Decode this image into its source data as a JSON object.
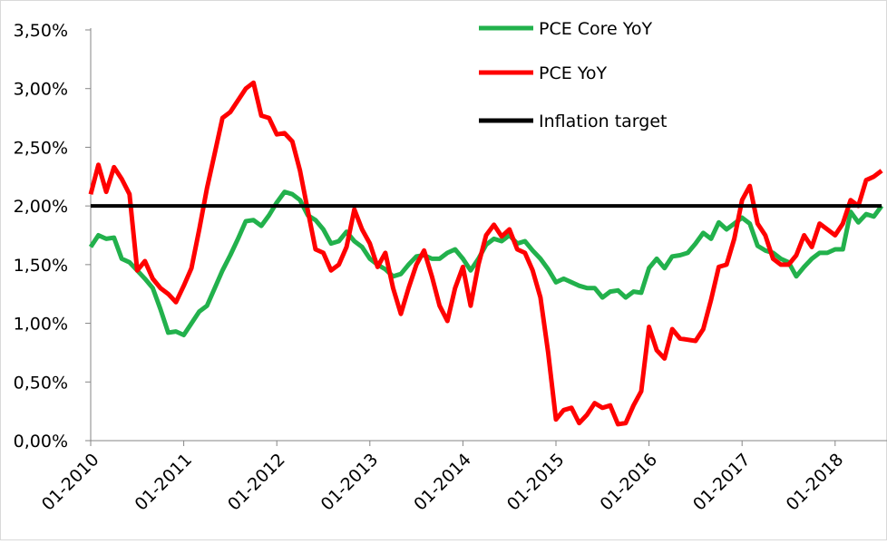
{
  "chart_data": {
    "type": "line",
    "x_unit": "month",
    "x_tick_labels": [
      "01-2010",
      "01-2011",
      "01-2012",
      "01-2013",
      "01-2014",
      "01-2015",
      "01-2016",
      "01-2017",
      "01-2018"
    ],
    "x_range": [
      "2010-01",
      "2018-07"
    ],
    "y_tick_labels": [
      "0,00%",
      "0,50%",
      "1,00%",
      "1,50%",
      "2,00%",
      "2,50%",
      "3,00%",
      "3,50%"
    ],
    "ylim": [
      0,
      3.5
    ],
    "grid": false,
    "legend_position": "top-right",
    "series": [
      {
        "name": "PCE Core YoY",
        "color": "#22b14c",
        "points": [
          [
            "2010-01",
            1.65
          ],
          [
            "2010-02",
            1.75
          ],
          [
            "2010-03",
            1.72
          ],
          [
            "2010-04",
            1.73
          ],
          [
            "2010-05",
            1.55
          ],
          [
            "2010-06",
            1.52
          ],
          [
            "2010-07",
            1.45
          ],
          [
            "2010-08",
            1.38
          ],
          [
            "2010-09",
            1.3
          ],
          [
            "2010-10",
            1.12
          ],
          [
            "2010-11",
            0.92
          ],
          [
            "2010-12",
            0.93
          ],
          [
            "2011-01",
            0.9
          ],
          [
            "2011-02",
            1.0
          ],
          [
            "2011-03",
            1.1
          ],
          [
            "2011-04",
            1.15
          ],
          [
            "2011-05",
            1.3
          ],
          [
            "2011-06",
            1.45
          ],
          [
            "2011-07",
            1.58
          ],
          [
            "2011-08",
            1.72
          ],
          [
            "2011-09",
            1.87
          ],
          [
            "2011-10",
            1.88
          ],
          [
            "2011-11",
            1.83
          ],
          [
            "2011-12",
            1.92
          ],
          [
            "2012-01",
            2.03
          ],
          [
            "2012-02",
            2.12
          ],
          [
            "2012-03",
            2.1
          ],
          [
            "2012-04",
            2.05
          ],
          [
            "2012-05",
            1.92
          ],
          [
            "2012-06",
            1.88
          ],
          [
            "2012-07",
            1.8
          ],
          [
            "2012-08",
            1.68
          ],
          [
            "2012-09",
            1.7
          ],
          [
            "2012-10",
            1.78
          ],
          [
            "2012-11",
            1.7
          ],
          [
            "2012-12",
            1.65
          ],
          [
            "2013-01",
            1.55
          ],
          [
            "2013-02",
            1.5
          ],
          [
            "2013-03",
            1.46
          ],
          [
            "2013-04",
            1.4
          ],
          [
            "2013-05",
            1.42
          ],
          [
            "2013-06",
            1.5
          ],
          [
            "2013-07",
            1.57
          ],
          [
            "2013-08",
            1.58
          ],
          [
            "2013-09",
            1.55
          ],
          [
            "2013-10",
            1.55
          ],
          [
            "2013-11",
            1.6
          ],
          [
            "2013-12",
            1.63
          ],
          [
            "2014-01",
            1.55
          ],
          [
            "2014-02",
            1.45
          ],
          [
            "2014-03",
            1.55
          ],
          [
            "2014-04",
            1.67
          ],
          [
            "2014-05",
            1.72
          ],
          [
            "2014-06",
            1.7
          ],
          [
            "2014-07",
            1.75
          ],
          [
            "2014-08",
            1.68
          ],
          [
            "2014-09",
            1.7
          ],
          [
            "2014-10",
            1.62
          ],
          [
            "2014-11",
            1.55
          ],
          [
            "2014-12",
            1.46
          ],
          [
            "2015-01",
            1.35
          ],
          [
            "2015-02",
            1.38
          ],
          [
            "2015-03",
            1.35
          ],
          [
            "2015-04",
            1.32
          ],
          [
            "2015-05",
            1.3
          ],
          [
            "2015-06",
            1.3
          ],
          [
            "2015-07",
            1.22
          ],
          [
            "2015-08",
            1.27
          ],
          [
            "2015-09",
            1.28
          ],
          [
            "2015-10",
            1.22
          ],
          [
            "2015-11",
            1.27
          ],
          [
            "2015-12",
            1.26
          ],
          [
            "2016-01",
            1.47
          ],
          [
            "2016-02",
            1.55
          ],
          [
            "2016-03",
            1.47
          ],
          [
            "2016-04",
            1.57
          ],
          [
            "2016-05",
            1.58
          ],
          [
            "2016-06",
            1.6
          ],
          [
            "2016-07",
            1.68
          ],
          [
            "2016-08",
            1.77
          ],
          [
            "2016-09",
            1.72
          ],
          [
            "2016-10",
            1.86
          ],
          [
            "2016-11",
            1.8
          ],
          [
            "2016-12",
            1.85
          ],
          [
            "2017-01",
            1.9
          ],
          [
            "2017-02",
            1.85
          ],
          [
            "2017-03",
            1.66
          ],
          [
            "2017-04",
            1.62
          ],
          [
            "2017-05",
            1.6
          ],
          [
            "2017-06",
            1.55
          ],
          [
            "2017-07",
            1.52
          ],
          [
            "2017-08",
            1.4
          ],
          [
            "2017-09",
            1.48
          ],
          [
            "2017-10",
            1.55
          ],
          [
            "2017-11",
            1.6
          ],
          [
            "2017-12",
            1.6
          ],
          [
            "2018-01",
            1.63
          ],
          [
            "2018-02",
            1.63
          ],
          [
            "2018-03",
            1.95
          ],
          [
            "2018-04",
            1.86
          ],
          [
            "2018-05",
            1.93
          ],
          [
            "2018-06",
            1.91
          ],
          [
            "2018-07",
            2.0
          ]
        ]
      },
      {
        "name": "PCE YoY",
        "color": "#ff0000",
        "points": [
          [
            "2010-01",
            2.1
          ],
          [
            "2010-02",
            2.35
          ],
          [
            "2010-03",
            2.12
          ],
          [
            "2010-04",
            2.33
          ],
          [
            "2010-05",
            2.23
          ],
          [
            "2010-06",
            2.1
          ],
          [
            "2010-07",
            1.45
          ],
          [
            "2010-08",
            1.53
          ],
          [
            "2010-09",
            1.38
          ],
          [
            "2010-10",
            1.3
          ],
          [
            "2010-11",
            1.25
          ],
          [
            "2010-12",
            1.18
          ],
          [
            "2011-01",
            1.32
          ],
          [
            "2011-02",
            1.47
          ],
          [
            "2011-03",
            1.8
          ],
          [
            "2011-04",
            2.15
          ],
          [
            "2011-05",
            2.45
          ],
          [
            "2011-06",
            2.75
          ],
          [
            "2011-07",
            2.8
          ],
          [
            "2011-08",
            2.9
          ],
          [
            "2011-09",
            3.0
          ],
          [
            "2011-10",
            3.05
          ],
          [
            "2011-11",
            2.77
          ],
          [
            "2011-12",
            2.75
          ],
          [
            "2012-01",
            2.61
          ],
          [
            "2012-02",
            2.62
          ],
          [
            "2012-03",
            2.55
          ],
          [
            "2012-04",
            2.3
          ],
          [
            "2012-05",
            1.96
          ],
          [
            "2012-06",
            1.63
          ],
          [
            "2012-07",
            1.6
          ],
          [
            "2012-08",
            1.45
          ],
          [
            "2012-09",
            1.5
          ],
          [
            "2012-10",
            1.65
          ],
          [
            "2012-11",
            1.97
          ],
          [
            "2012-12",
            1.8
          ],
          [
            "2013-01",
            1.68
          ],
          [
            "2013-02",
            1.48
          ],
          [
            "2013-03",
            1.6
          ],
          [
            "2013-04",
            1.3
          ],
          [
            "2013-05",
            1.08
          ],
          [
            "2013-06",
            1.3
          ],
          [
            "2013-07",
            1.5
          ],
          [
            "2013-08",
            1.62
          ],
          [
            "2013-09",
            1.4
          ],
          [
            "2013-10",
            1.15
          ],
          [
            "2013-11",
            1.02
          ],
          [
            "2013-12",
            1.3
          ],
          [
            "2014-01",
            1.48
          ],
          [
            "2014-02",
            1.15
          ],
          [
            "2014-03",
            1.5
          ],
          [
            "2014-04",
            1.75
          ],
          [
            "2014-05",
            1.84
          ],
          [
            "2014-06",
            1.74
          ],
          [
            "2014-07",
            1.8
          ],
          [
            "2014-08",
            1.63
          ],
          [
            "2014-09",
            1.6
          ],
          [
            "2014-10",
            1.45
          ],
          [
            "2014-11",
            1.22
          ],
          [
            "2014-12",
            0.75
          ],
          [
            "2015-01",
            0.18
          ],
          [
            "2015-02",
            0.26
          ],
          [
            "2015-03",
            0.28
          ],
          [
            "2015-04",
            0.15
          ],
          [
            "2015-05",
            0.22
          ],
          [
            "2015-06",
            0.32
          ],
          [
            "2015-07",
            0.28
          ],
          [
            "2015-08",
            0.3
          ],
          [
            "2015-09",
            0.14
          ],
          [
            "2015-10",
            0.15
          ],
          [
            "2015-11",
            0.3
          ],
          [
            "2015-12",
            0.42
          ],
          [
            "2016-01",
            0.97
          ],
          [
            "2016-02",
            0.77
          ],
          [
            "2016-03",
            0.7
          ],
          [
            "2016-04",
            0.95
          ],
          [
            "2016-05",
            0.87
          ],
          [
            "2016-06",
            0.86
          ],
          [
            "2016-07",
            0.85
          ],
          [
            "2016-08",
            0.95
          ],
          [
            "2016-09",
            1.2
          ],
          [
            "2016-10",
            1.48
          ],
          [
            "2016-11",
            1.5
          ],
          [
            "2016-12",
            1.72
          ],
          [
            "2017-01",
            2.05
          ],
          [
            "2017-02",
            2.17
          ],
          [
            "2017-03",
            1.85
          ],
          [
            "2017-04",
            1.75
          ],
          [
            "2017-05",
            1.55
          ],
          [
            "2017-06",
            1.5
          ],
          [
            "2017-07",
            1.5
          ],
          [
            "2017-08",
            1.58
          ],
          [
            "2017-09",
            1.75
          ],
          [
            "2017-10",
            1.65
          ],
          [
            "2017-11",
            1.85
          ],
          [
            "2017-12",
            1.8
          ],
          [
            "2018-01",
            1.75
          ],
          [
            "2018-02",
            1.85
          ],
          [
            "2018-03",
            2.05
          ],
          [
            "2018-04",
            2.0
          ],
          [
            "2018-05",
            2.22
          ],
          [
            "2018-06",
            2.25
          ],
          [
            "2018-07",
            2.3
          ]
        ]
      },
      {
        "name": "Inflation target",
        "color": "#000000",
        "points": [
          [
            "2010-01",
            2.0
          ],
          [
            "2018-07",
            2.0
          ]
        ]
      }
    ]
  }
}
